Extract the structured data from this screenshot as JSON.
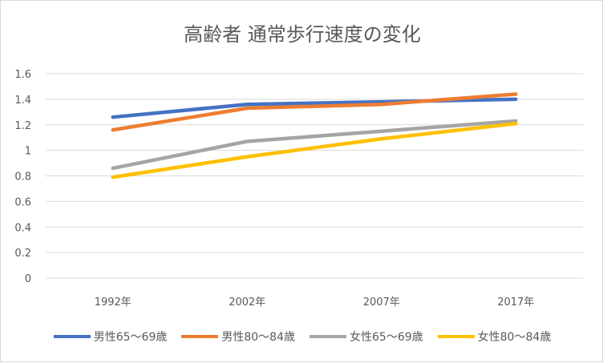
{
  "chart_data": {
    "type": "line",
    "title": "高齢者 通常歩行速度の変化",
    "categories": [
      "1992年",
      "2002年",
      "2007年",
      "2017年"
    ],
    "ylim": [
      0,
      1.6
    ],
    "yticks": [
      "0",
      "0.2",
      "0.4",
      "0.6",
      "0.8",
      "1",
      "1.2",
      "1.4",
      "1.6"
    ],
    "grid": true,
    "legend": "bottom",
    "series": [
      {
        "name": "男性65〜69歳",
        "color": "#4472C4",
        "values": [
          1.26,
          1.36,
          1.38,
          1.4
        ]
      },
      {
        "name": "男性80〜84歳",
        "color": "#ED7D31",
        "values": [
          1.16,
          1.33,
          1.36,
          1.44
        ]
      },
      {
        "name": "女性65〜69歳",
        "color": "#A5A5A5",
        "values": [
          0.86,
          1.07,
          1.15,
          1.23
        ]
      },
      {
        "name": "女性80〜84歳",
        "color": "#FFC000",
        "values": [
          0.79,
          0.95,
          1.09,
          1.21
        ]
      }
    ]
  }
}
